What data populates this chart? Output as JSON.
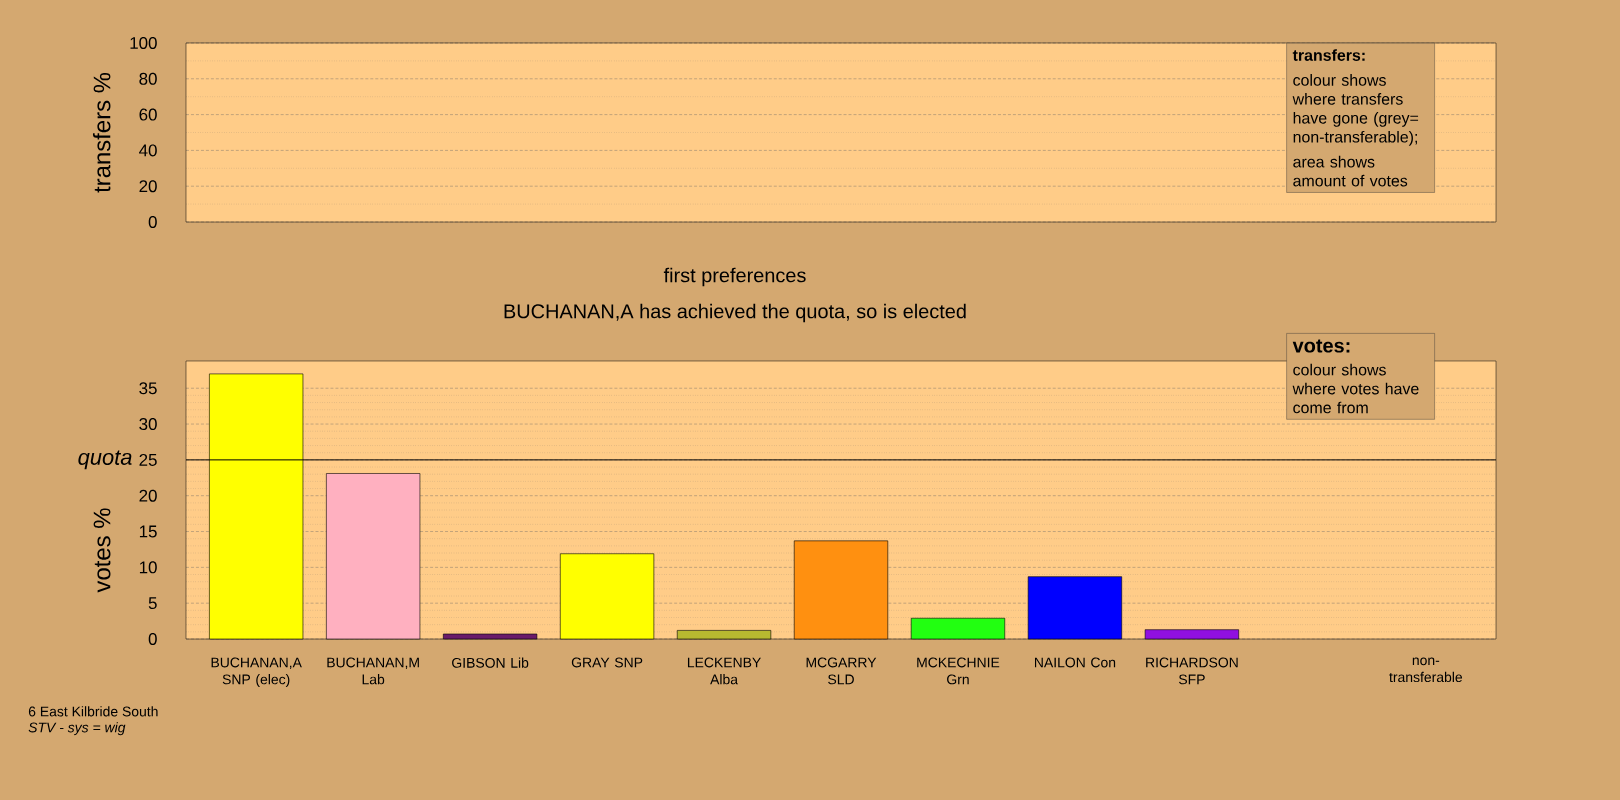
{
  "chart_data": [
    {
      "type": "bar",
      "ylabel": "transfers %",
      "categories": [
        null,
        null,
        null,
        null,
        null,
        null,
        null,
        null,
        null,
        null,
        null
      ],
      "values": [
        null,
        null,
        null,
        null,
        null,
        null,
        null,
        null,
        null,
        null,
        null
      ],
      "ylim": [
        0,
        100
      ],
      "yticks": [
        0,
        20,
        40,
        60,
        80,
        100
      ],
      "grid": "y",
      "annotations": [
        "transfers:",
        "colour shows where transfers have gone (grey= non-transferable);",
        "area shows amount of votes"
      ]
    },
    {
      "type": "bar",
      "title": "first preferences",
      "subtitle": "BUCHANAN,A has achieved the quota, so is elected",
      "ylabel": "votes %",
      "categories": [
        "BUCHANAN,A SNP (elec)",
        "BUCHANAN,M Lab",
        "GIBSON Lib",
        "GRAY SNP",
        "LECKENBY Alba",
        "MCGARRY SLD",
        "MCKECHNIE Grn",
        "NAILON Con",
        "RICHARDSON SFP",
        null,
        "non-transferable"
      ],
      "values": [
        37.0,
        23.1,
        0.7,
        11.9,
        1.2,
        13.7,
        2.9,
        8.7,
        1.3,
        null,
        null
      ],
      "colors": [
        "#ffff00",
        "#ffb0c0",
        "#6a1b6a",
        "#ffff00",
        "#b8b830",
        "#ff9010",
        "#22ff11",
        "#0000ff",
        "#9010e0",
        "#000000",
        "#888888"
      ],
      "ylim": [
        0,
        38.8
      ],
      "yticks": [
        0,
        5,
        10,
        15,
        20,
        25,
        30,
        35
      ],
      "grid": "y",
      "ref_lines": [
        {
          "axis": "y",
          "value": 25,
          "label": "quota"
        }
      ],
      "annotations": [
        "votes:",
        "colour shows where votes have come from",
        "6 East Kilbride South",
        "STV - sys = wig"
      ]
    }
  ]
}
